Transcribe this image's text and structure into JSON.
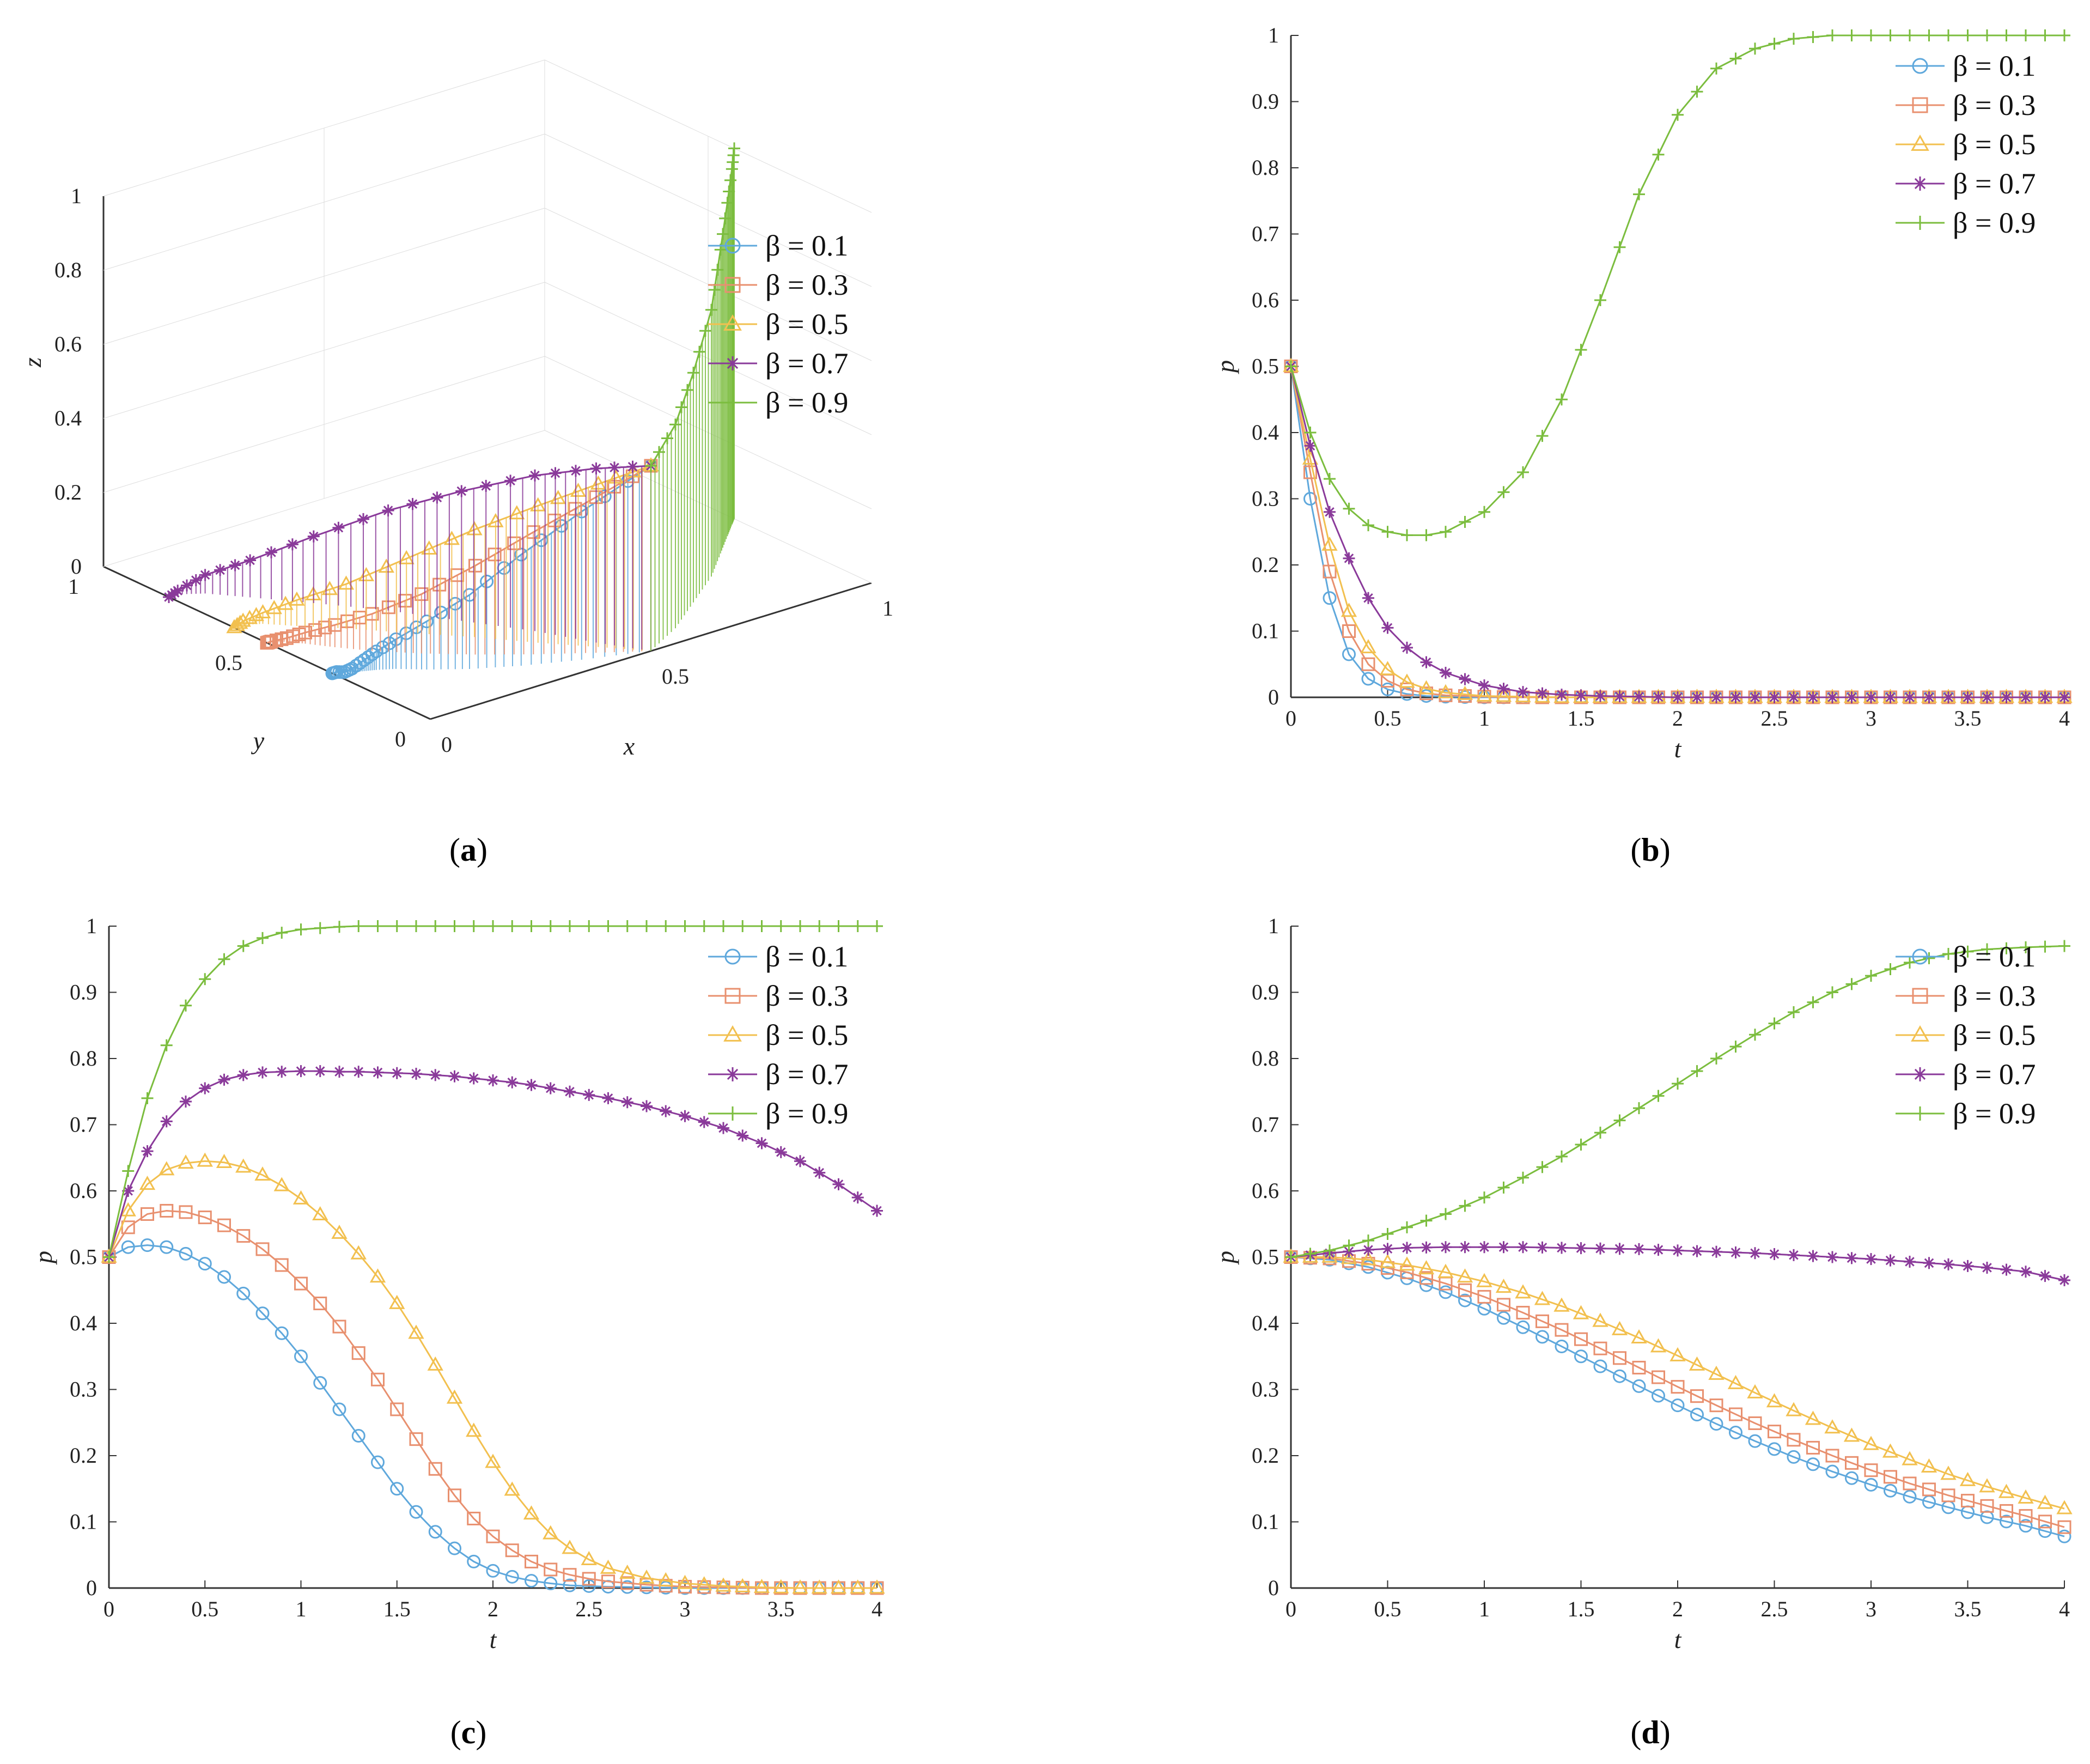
{
  "captions": {
    "a": "a",
    "b": "b",
    "c": "c",
    "d": "d"
  },
  "legend_prefix": "β = ",
  "colors": {
    "0.1": "#5fa8dc",
    "0.3": "#e8906f",
    "0.5": "#f2c04f",
    "0.7": "#8a3a9a",
    "0.9": "#7bbd3e"
  },
  "markers": {
    "0.1": "circle",
    "0.3": "square",
    "0.5": "triangle",
    "0.7": "star",
    "0.9": "plus"
  },
  "chart_data": [
    {
      "id": "a",
      "type": "line3d",
      "xlabel": "x",
      "ylabel": "y",
      "zlabel": "z",
      "x_ticks": [
        "0",
        "0.5",
        "1"
      ],
      "y_ticks": [
        "0",
        "0.5",
        "1"
      ],
      "z_ticks": [
        "0",
        "0.2",
        "0.4",
        "0.6",
        "0.8",
        "1"
      ],
      "xlim": [
        0,
        1
      ],
      "ylim": [
        0,
        1
      ],
      "zlim": [
        0,
        1
      ],
      "legend": [
        "β = 0.1",
        "β = 0.3",
        "β = 0.5",
        "β = 0.7",
        "β = 0.9"
      ],
      "legend_position": "right",
      "series": [
        {
          "name": "β = 0.1",
          "x": [
            0.5,
            0.38,
            0.28,
            0.2,
            0.14,
            0.1,
            0.07,
            0.05,
            0.03,
            0.02,
            0.01,
            0.0
          ],
          "y": [
            0.0,
            0.05,
            0.1,
            0.15,
            0.2,
            0.24,
            0.26,
            0.27,
            0.28,
            0.29,
            0.3,
            0.3
          ],
          "z": [
            0.5,
            0.4,
            0.3,
            0.2,
            0.13,
            0.08,
            0.05,
            0.03,
            0.01,
            0.0,
            0.0,
            0.0
          ]
        },
        {
          "name": "β = 0.3",
          "x": [
            0.5,
            0.42,
            0.33,
            0.25,
            0.18,
            0.12,
            0.08,
            0.05,
            0.03,
            0.01,
            0.0
          ],
          "y": [
            0.0,
            0.06,
            0.13,
            0.2,
            0.27,
            0.34,
            0.4,
            0.45,
            0.48,
            0.5,
            0.5
          ],
          "z": [
            0.5,
            0.42,
            0.33,
            0.24,
            0.16,
            0.1,
            0.06,
            0.03,
            0.01,
            0.0,
            0.0
          ]
        },
        {
          "name": "β = 0.5",
          "x": [
            0.5,
            0.44,
            0.37,
            0.3,
            0.22,
            0.15,
            0.09,
            0.05,
            0.02,
            0.0
          ],
          "y": [
            0.0,
            0.08,
            0.17,
            0.27,
            0.37,
            0.46,
            0.53,
            0.58,
            0.6,
            0.6
          ],
          "z": [
            0.5,
            0.44,
            0.37,
            0.29,
            0.2,
            0.12,
            0.07,
            0.03,
            0.01,
            0.0
          ]
        },
        {
          "name": "β = 0.7",
          "x": [
            0.5,
            0.45,
            0.4,
            0.33,
            0.26,
            0.18,
            0.11,
            0.06,
            0.02,
            0.0
          ],
          "y": [
            0.0,
            0.1,
            0.22,
            0.35,
            0.48,
            0.6,
            0.7,
            0.77,
            0.8,
            0.8
          ],
          "z": [
            0.5,
            0.47,
            0.42,
            0.35,
            0.27,
            0.18,
            0.1,
            0.05,
            0.01,
            0.0
          ]
        },
        {
          "name": "β = 0.9",
          "x": [
            0.5,
            0.6,
            0.7,
            0.8,
            0.88,
            0.94,
            0.98,
            1.0
          ],
          "y": [
            0.0,
            0.06,
            0.14,
            0.22,
            0.3,
            0.36,
            0.4,
            0.42
          ],
          "z": [
            0.5,
            0.55,
            0.62,
            0.72,
            0.82,
            0.9,
            0.96,
            1.0
          ]
        }
      ]
    },
    {
      "id": "b",
      "type": "line",
      "xlabel": "t",
      "ylabel": "p",
      "xlim": [
        0,
        4
      ],
      "ylim": [
        0,
        1
      ],
      "x_ticks": [
        "0",
        "0.5",
        "1",
        "1.5",
        "2",
        "2.5",
        "3",
        "3.5",
        "4"
      ],
      "y_ticks": [
        "0",
        "0.1",
        "0.2",
        "0.3",
        "0.4",
        "0.5",
        "0.6",
        "0.7",
        "0.8",
        "0.9",
        "1"
      ],
      "legend": [
        "β = 0.1",
        "β = 0.3",
        "β = 0.5",
        "β = 0.7",
        "β = 0.9"
      ],
      "legend_position": "top-right",
      "x": [
        0,
        0.1,
        0.2,
        0.3,
        0.4,
        0.5,
        0.6,
        0.7,
        0.8,
        1.0,
        1.2,
        1.4,
        1.6,
        1.8,
        2.0,
        2.2,
        2.4,
        2.6,
        2.8,
        3.0,
        3.5,
        4.0
      ],
      "series": [
        {
          "name": "β = 0.1",
          "values": [
            0.5,
            0.3,
            0.15,
            0.065,
            0.028,
            0.012,
            0.005,
            0.002,
            0.001,
            0,
            0,
            0,
            0,
            0,
            0,
            0,
            0,
            0,
            0,
            0,
            0,
            0
          ]
        },
        {
          "name": "β = 0.3",
          "values": [
            0.5,
            0.34,
            0.19,
            0.1,
            0.05,
            0.025,
            0.012,
            0.006,
            0.003,
            0.001,
            0,
            0,
            0,
            0,
            0,
            0,
            0,
            0,
            0,
            0,
            0,
            0
          ]
        },
        {
          "name": "β = 0.5",
          "values": [
            0.5,
            0.36,
            0.23,
            0.13,
            0.075,
            0.042,
            0.023,
            0.013,
            0.007,
            0.002,
            0.001,
            0,
            0,
            0,
            0,
            0,
            0,
            0,
            0,
            0,
            0,
            0
          ]
        },
        {
          "name": "β = 0.7",
          "values": [
            0.5,
            0.38,
            0.28,
            0.21,
            0.15,
            0.105,
            0.075,
            0.053,
            0.037,
            0.018,
            0.008,
            0.004,
            0.002,
            0.001,
            0,
            0,
            0,
            0,
            0,
            0,
            0,
            0
          ]
        },
        {
          "name": "β = 0.9",
          "values": [
            0.5,
            0.4,
            0.33,
            0.285,
            0.26,
            0.25,
            0.245,
            0.245,
            0.25,
            0.28,
            0.34,
            0.45,
            0.6,
            0.76,
            0.88,
            0.95,
            0.98,
            0.995,
            1.0,
            1.0,
            1.0,
            1.0
          ]
        }
      ]
    },
    {
      "id": "c",
      "type": "line",
      "xlabel": "t",
      "ylabel": "p",
      "xlim": [
        0,
        4
      ],
      "ylim": [
        0,
        1
      ],
      "x_ticks": [
        "0",
        "0.5",
        "1",
        "1.5",
        "2",
        "2.5",
        "3",
        "3.5",
        "4"
      ],
      "y_ticks": [
        "0",
        "0.1",
        "0.2",
        "0.3",
        "0.4",
        "0.5",
        "0.6",
        "0.7",
        "0.8",
        "0.9",
        "1"
      ],
      "legend": [
        "β = 0.1",
        "β = 0.3",
        "β = 0.5",
        "β = 0.7",
        "β = 0.9"
      ],
      "legend_position": "top-right",
      "x": [
        0,
        0.1,
        0.2,
        0.3,
        0.4,
        0.5,
        0.6,
        0.7,
        0.8,
        0.9,
        1.0,
        1.1,
        1.2,
        1.3,
        1.4,
        1.5,
        1.6,
        1.7,
        1.8,
        1.9,
        2.0,
        2.1,
        2.2,
        2.3,
        2.4,
        2.5,
        2.6,
        2.8,
        3.0,
        3.2,
        3.4,
        3.6,
        3.8,
        4.0
      ],
      "series": [
        {
          "name": "β = 0.1",
          "values": [
            0.5,
            0.515,
            0.518,
            0.515,
            0.505,
            0.49,
            0.47,
            0.445,
            0.415,
            0.385,
            0.35,
            0.31,
            0.27,
            0.23,
            0.19,
            0.15,
            0.115,
            0.085,
            0.06,
            0.04,
            0.026,
            0.017,
            0.011,
            0.007,
            0.004,
            0.003,
            0.002,
            0.001,
            0,
            0,
            0,
            0,
            0,
            0
          ]
        },
        {
          "name": "β = 0.3",
          "values": [
            0.5,
            0.545,
            0.565,
            0.57,
            0.568,
            0.56,
            0.548,
            0.532,
            0.512,
            0.488,
            0.46,
            0.43,
            0.395,
            0.355,
            0.315,
            0.27,
            0.225,
            0.18,
            0.14,
            0.105,
            0.078,
            0.057,
            0.04,
            0.028,
            0.02,
            0.014,
            0.01,
            0.005,
            0.002,
            0.001,
            0,
            0,
            0,
            0
          ]
        },
        {
          "name": "β = 0.5",
          "values": [
            0.5,
            0.57,
            0.61,
            0.632,
            0.642,
            0.645,
            0.643,
            0.636,
            0.624,
            0.608,
            0.588,
            0.564,
            0.536,
            0.505,
            0.47,
            0.43,
            0.385,
            0.337,
            0.287,
            0.237,
            0.19,
            0.148,
            0.112,
            0.082,
            0.06,
            0.043,
            0.03,
            0.015,
            0.007,
            0.003,
            0.001,
            0,
            0,
            0
          ]
        },
        {
          "name": "β = 0.7",
          "values": [
            0.5,
            0.6,
            0.66,
            0.705,
            0.735,
            0.755,
            0.768,
            0.775,
            0.779,
            0.78,
            0.781,
            0.781,
            0.78,
            0.78,
            0.779,
            0.778,
            0.777,
            0.775,
            0.773,
            0.77,
            0.767,
            0.764,
            0.76,
            0.755,
            0.75,
            0.745,
            0.74,
            0.728,
            0.713,
            0.695,
            0.672,
            0.645,
            0.61,
            0.57
          ]
        },
        {
          "name": "β = 0.9",
          "values": [
            0.5,
            0.63,
            0.74,
            0.82,
            0.88,
            0.92,
            0.95,
            0.97,
            0.982,
            0.99,
            0.995,
            0.997,
            0.999,
            1.0,
            1.0,
            1.0,
            1.0,
            1.0,
            1.0,
            1.0,
            1.0,
            1.0,
            1.0,
            1.0,
            1.0,
            1.0,
            1.0,
            1.0,
            1.0,
            1.0,
            1.0,
            1.0,
            1.0,
            1.0
          ]
        }
      ]
    },
    {
      "id": "d",
      "type": "line",
      "xlabel": "t",
      "ylabel": "p",
      "xlim": [
        0,
        4
      ],
      "ylim": [
        0,
        1
      ],
      "x_ticks": [
        "0",
        "0.5",
        "1",
        "1.5",
        "2",
        "2.5",
        "3",
        "3.5",
        "4"
      ],
      "y_ticks": [
        "0",
        "0.1",
        "0.2",
        "0.3",
        "0.4",
        "0.5",
        "0.6",
        "0.7",
        "0.8",
        "0.9",
        "1"
      ],
      "legend": [
        "β = 0.1",
        "β = 0.3",
        "β = 0.5",
        "β = 0.7",
        "β = 0.9"
      ],
      "legend_position": "top-right",
      "x": [
        0,
        0.2,
        0.4,
        0.6,
        0.8,
        1.0,
        1.2,
        1.4,
        1.6,
        1.8,
        2.0,
        2.2,
        2.4,
        2.6,
        2.8,
        3.0,
        3.2,
        3.4,
        3.6,
        3.8,
        4.0
      ],
      "series": [
        {
          "name": "β = 0.1",
          "values": [
            0.5,
            0.496,
            0.485,
            0.468,
            0.447,
            0.422,
            0.394,
            0.365,
            0.335,
            0.305,
            0.276,
            0.248,
            0.222,
            0.198,
            0.176,
            0.156,
            0.138,
            0.122,
            0.107,
            0.094,
            0.078
          ]
        },
        {
          "name": "β = 0.3",
          "values": [
            0.5,
            0.498,
            0.49,
            0.477,
            0.46,
            0.44,
            0.416,
            0.39,
            0.362,
            0.333,
            0.304,
            0.276,
            0.249,
            0.224,
            0.2,
            0.178,
            0.158,
            0.14,
            0.124,
            0.109,
            0.092
          ]
        },
        {
          "name": "β = 0.5",
          "values": [
            0.5,
            0.5,
            0.496,
            0.488,
            0.477,
            0.463,
            0.446,
            0.426,
            0.403,
            0.378,
            0.351,
            0.323,
            0.295,
            0.268,
            0.242,
            0.217,
            0.194,
            0.172,
            0.153,
            0.136,
            0.12
          ]
        },
        {
          "name": "β = 0.7",
          "values": [
            0.5,
            0.506,
            0.511,
            0.514,
            0.515,
            0.515,
            0.515,
            0.514,
            0.513,
            0.512,
            0.51,
            0.508,
            0.506,
            0.503,
            0.5,
            0.497,
            0.493,
            0.489,
            0.484,
            0.478,
            0.465
          ]
        },
        {
          "name": "β = 0.9",
          "values": [
            0.5,
            0.51,
            0.525,
            0.545,
            0.565,
            0.59,
            0.62,
            0.652,
            0.688,
            0.725,
            0.762,
            0.8,
            0.836,
            0.87,
            0.9,
            0.925,
            0.945,
            0.958,
            0.965,
            0.968,
            0.97
          ]
        }
      ]
    }
  ]
}
